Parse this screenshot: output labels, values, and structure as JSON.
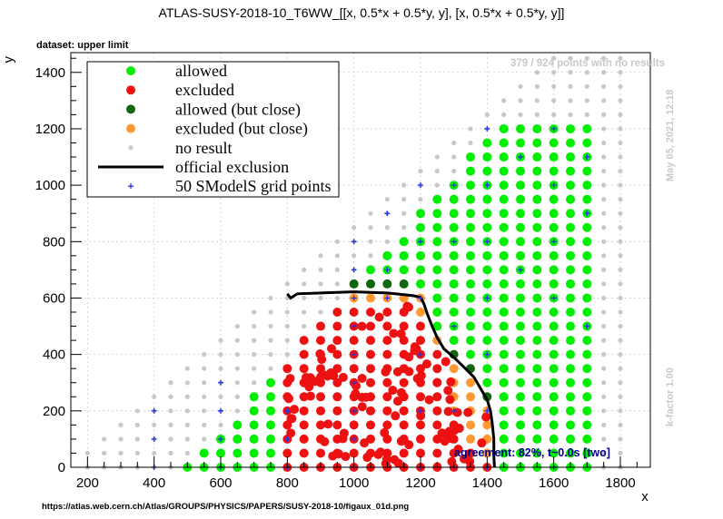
{
  "chart_data": {
    "type": "scatter",
    "title": "ATLAS-SUSY-2018-10_T6WW_[[x, 0.5*x + 0.5*y, y], [x, 0.5*x + 0.5*y, y]]",
    "subtitle": "dataset: upper limit",
    "xlabel": "x",
    "ylabel": "y",
    "xlim": [
      150,
      1890
    ],
    "ylim": [
      0,
      1470
    ],
    "xticks": [
      200,
      400,
      600,
      800,
      1000,
      1200,
      1400,
      1600,
      1800
    ],
    "yticks": [
      0,
      200,
      400,
      600,
      800,
      1000,
      1200,
      1400
    ],
    "grid": true,
    "legend_placement": "top-left",
    "legend": [
      {
        "key": "allowed",
        "label": "allowed",
        "color": "#00ee00"
      },
      {
        "key": "excluded",
        "label": "excluded",
        "color": "#ee1111"
      },
      {
        "key": "allowed_close",
        "label": "allowed (but close)",
        "color": "#116611"
      },
      {
        "key": "excluded_close",
        "label": "excluded (but close)",
        "color": "#ff9933"
      },
      {
        "key": "no_result",
        "label": "no result",
        "color": "#c8c8c8"
      },
      {
        "key": "official",
        "label": "official exclusion",
        "color": "#000000"
      },
      {
        "key": "grid_points",
        "label": "50 SModelS grid points",
        "color": "#2233ee"
      }
    ],
    "official_exclusion": [
      [
        800,
        615
      ],
      [
        810,
        600
      ],
      [
        830,
        615
      ],
      [
        900,
        618
      ],
      [
        950,
        620
      ],
      [
        1000,
        622
      ],
      [
        1050,
        620
      ],
      [
        1100,
        618
      ],
      [
        1150,
        612
      ],
      [
        1180,
        608
      ],
      [
        1200,
        602
      ],
      [
        1210,
        580
      ],
      [
        1220,
        545
      ],
      [
        1235,
        500
      ],
      [
        1250,
        460
      ],
      [
        1270,
        420
      ],
      [
        1300,
        390
      ],
      [
        1330,
        355
      ],
      [
        1360,
        320
      ],
      [
        1380,
        280
      ],
      [
        1400,
        240
      ],
      [
        1410,
        200
      ],
      [
        1415,
        160
      ],
      [
        1420,
        100
      ],
      [
        1420,
        40
      ],
      [
        1422,
        0
      ]
    ],
    "grid_points": [
      [
        400,
        200
      ],
      [
        400,
        100
      ],
      [
        400,
        0
      ],
      [
        600,
        300
      ],
      [
        600,
        200
      ],
      [
        600,
        100
      ],
      [
        600,
        0
      ],
      [
        800,
        200
      ],
      [
        800,
        100
      ],
      [
        800,
        0
      ],
      [
        1000,
        800
      ],
      [
        1000,
        700
      ],
      [
        1000,
        600
      ],
      [
        1000,
        500
      ],
      [
        1000,
        400
      ],
      [
        1000,
        300
      ],
      [
        1000,
        200
      ],
      [
        1000,
        100
      ],
      [
        1000,
        0
      ],
      [
        1100,
        900
      ],
      [
        1100,
        700
      ],
      [
        1100,
        600
      ],
      [
        1200,
        1000
      ],
      [
        1200,
        800
      ],
      [
        1200,
        600
      ],
      [
        1200,
        400
      ],
      [
        1200,
        200
      ],
      [
        1200,
        0
      ],
      [
        1300,
        1000
      ],
      [
        1300,
        800
      ],
      [
        1300,
        500
      ],
      [
        1300,
        200
      ],
      [
        1300,
        0
      ],
      [
        1400,
        1200
      ],
      [
        1400,
        1000
      ],
      [
        1400,
        800
      ],
      [
        1400,
        600
      ],
      [
        1400,
        400
      ],
      [
        1400,
        200
      ],
      [
        1400,
        0
      ],
      [
        1500,
        1100
      ],
      [
        1500,
        700
      ],
      [
        1600,
        1200
      ],
      [
        1600,
        1000
      ],
      [
        1600,
        800
      ],
      [
        1600,
        600
      ],
      [
        1600,
        0
      ],
      [
        1700,
        1100
      ],
      [
        1700,
        900
      ],
      [
        1700,
        500
      ]
    ],
    "point_counts": {
      "no_result": 379,
      "total": 924
    }
  },
  "annotations": {
    "no_results": "379 / 924 points with no results",
    "timestamp": "May 05, 2021, 12:18",
    "kfactor": "k-factor 1.00",
    "agreement": "agreement: 82%, t~0.0s [two]",
    "url": "https://atlas.web.cern.ch/Atlas/GROUPS/PHYSICS/PAPERS/SUSY-2018-10/figaux_01d.png"
  }
}
